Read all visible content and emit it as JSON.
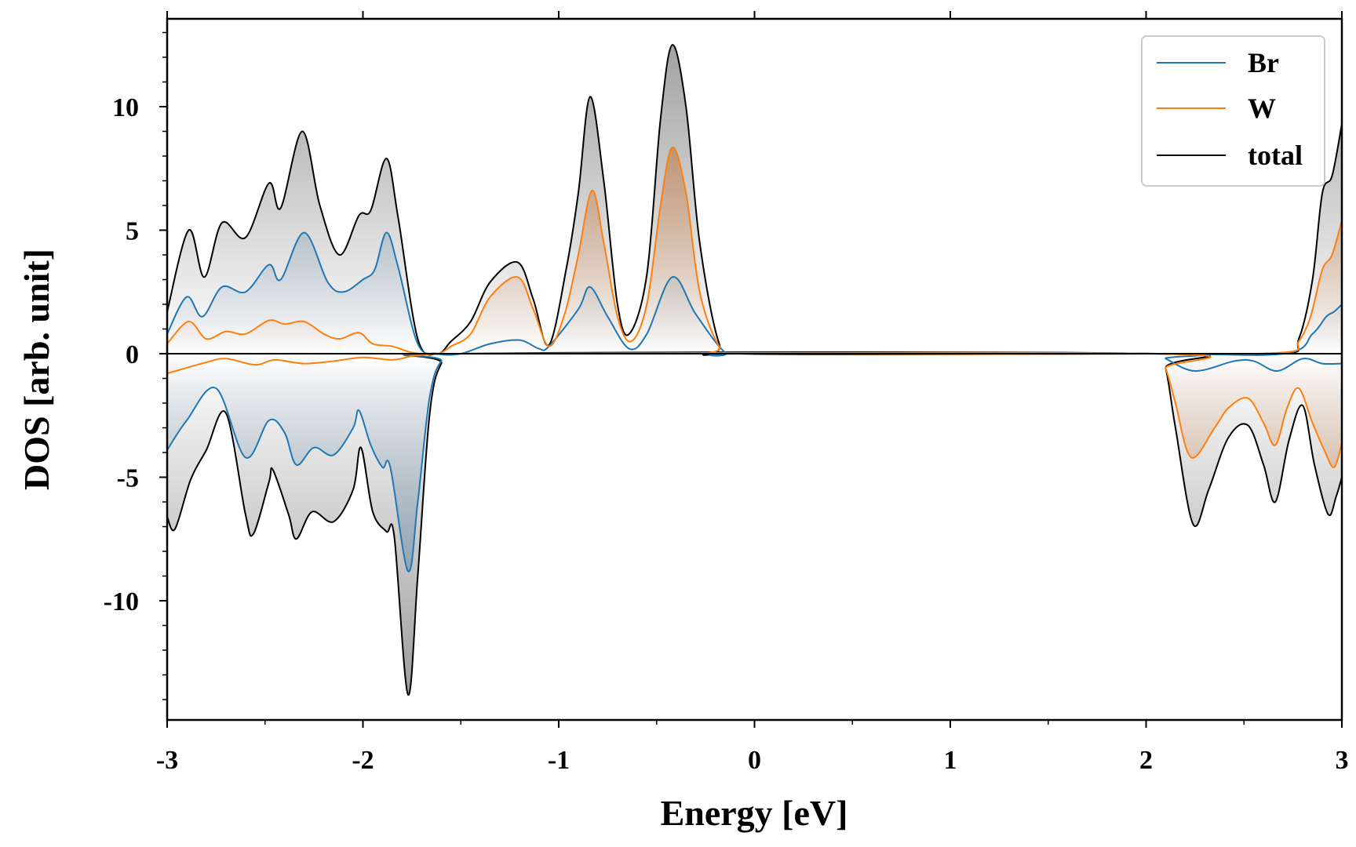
{
  "chart_data": {
    "type": "line",
    "xlabel": "Energy [eV]",
    "ylabel": "DOS [arb. unit]",
    "xlim": [
      -3,
      3
    ],
    "ylim": [
      -14.7,
      13.8
    ],
    "x_ticks": [
      -3,
      -2,
      -1,
      0,
      1,
      2,
      3
    ],
    "x_tick_labels": [
      "-3",
      "-2",
      "-1",
      "0",
      "1",
      "2",
      "3"
    ],
    "y_ticks": [
      -10,
      -5,
      0,
      5,
      10
    ],
    "y_tick_labels": [
      "-10",
      "-5",
      "0",
      "5",
      "10"
    ],
    "grid": false,
    "legend_position": "top-right",
    "spin_channels": [
      "up",
      "down"
    ],
    "series": [
      {
        "name": "Br",
        "color": "#1f77b4",
        "fill_color": "#5a7fa0",
        "up": [
          [
            -3.0,
            0.8
          ],
          [
            -2.9,
            2.3
          ],
          [
            -2.82,
            1.5
          ],
          [
            -2.72,
            2.7
          ],
          [
            -2.6,
            2.5
          ],
          [
            -2.48,
            3.6
          ],
          [
            -2.42,
            3.0
          ],
          [
            -2.3,
            4.9
          ],
          [
            -2.18,
            2.9
          ],
          [
            -2.1,
            2.5
          ],
          [
            -2.0,
            3.0
          ],
          [
            -1.94,
            3.4
          ],
          [
            -1.88,
            4.9
          ],
          [
            -1.82,
            3.5
          ],
          [
            -1.72,
            0.4
          ],
          [
            -1.62,
            0.0
          ],
          [
            -1.5,
            0.0
          ],
          [
            -1.35,
            0.4
          ],
          [
            -1.2,
            0.55
          ],
          [
            -1.1,
            0.2
          ],
          [
            -1.05,
            0.3
          ],
          [
            -0.9,
            1.8
          ],
          [
            -0.84,
            2.7
          ],
          [
            -0.75,
            1.5
          ],
          [
            -0.64,
            0.2
          ],
          [
            -0.55,
            0.8
          ],
          [
            -0.42,
            3.1
          ],
          [
            -0.3,
            1.6
          ],
          [
            -0.15,
            0.05
          ],
          [
            -0.05,
            0.0
          ],
          [
            2.0,
            0.0
          ],
          [
            2.7,
            0.0
          ],
          [
            2.85,
            0.8
          ],
          [
            2.92,
            1.5
          ],
          [
            2.96,
            1.7
          ],
          [
            3.0,
            2.0
          ]
        ],
        "down": [
          [
            -3.0,
            -3.9
          ],
          [
            -2.9,
            -2.7
          ],
          [
            -2.75,
            -1.4
          ],
          [
            -2.6,
            -4.2
          ],
          [
            -2.48,
            -2.7
          ],
          [
            -2.4,
            -3.2
          ],
          [
            -2.34,
            -4.5
          ],
          [
            -2.25,
            -3.8
          ],
          [
            -2.15,
            -4.1
          ],
          [
            -2.05,
            -3.0
          ],
          [
            -2.02,
            -2.3
          ],
          [
            -1.96,
            -3.7
          ],
          [
            -1.9,
            -4.6
          ],
          [
            -1.86,
            -4.6
          ],
          [
            -1.77,
            -8.8
          ],
          [
            -1.72,
            -6.0
          ],
          [
            -1.66,
            -1.8
          ],
          [
            -1.6,
            -0.3
          ],
          [
            -1.5,
            0.0
          ],
          [
            2.05,
            0.0
          ],
          [
            2.1,
            -0.2
          ],
          [
            2.25,
            -0.7
          ],
          [
            2.45,
            -0.3
          ],
          [
            2.55,
            -0.3
          ],
          [
            2.67,
            -0.7
          ],
          [
            2.8,
            -0.2
          ],
          [
            2.9,
            -0.4
          ],
          [
            3.0,
            -0.4
          ]
        ]
      },
      {
        "name": "W",
        "color": "#ff7f0e",
        "fill_color": "#c0621b",
        "up": [
          [
            -3.0,
            0.4
          ],
          [
            -2.89,
            1.3
          ],
          [
            -2.8,
            0.6
          ],
          [
            -2.7,
            0.9
          ],
          [
            -2.6,
            0.8
          ],
          [
            -2.48,
            1.35
          ],
          [
            -2.4,
            1.2
          ],
          [
            -2.3,
            1.3
          ],
          [
            -2.2,
            0.8
          ],
          [
            -2.12,
            0.6
          ],
          [
            -2.02,
            0.85
          ],
          [
            -1.95,
            0.4
          ],
          [
            -1.85,
            0.3
          ],
          [
            -1.75,
            0.05
          ],
          [
            -1.62,
            0.0
          ],
          [
            -1.55,
            0.3
          ],
          [
            -1.45,
            0.8
          ],
          [
            -1.35,
            2.3
          ],
          [
            -1.21,
            3.1
          ],
          [
            -1.13,
            1.8
          ],
          [
            -1.05,
            0.3
          ],
          [
            -0.97,
            1.6
          ],
          [
            -0.9,
            4.0
          ],
          [
            -0.83,
            6.6
          ],
          [
            -0.77,
            4.5
          ],
          [
            -0.7,
            1.5
          ],
          [
            -0.63,
            0.5
          ],
          [
            -0.55,
            2.0
          ],
          [
            -0.48,
            6.0
          ],
          [
            -0.42,
            8.35
          ],
          [
            -0.35,
            6.5
          ],
          [
            -0.28,
            2.5
          ],
          [
            -0.18,
            0.3
          ],
          [
            -0.08,
            0.0
          ],
          [
            2.0,
            0.0
          ],
          [
            2.7,
            0.05
          ],
          [
            2.78,
            0.5
          ],
          [
            2.84,
            1.5
          ],
          [
            2.9,
            3.4
          ],
          [
            2.95,
            4.0
          ],
          [
            3.0,
            5.4
          ]
        ],
        "down": [
          [
            -3.0,
            -0.8
          ],
          [
            -2.8,
            -0.35
          ],
          [
            -2.7,
            -0.2
          ],
          [
            -2.55,
            -0.45
          ],
          [
            -2.45,
            -0.25
          ],
          [
            -2.3,
            -0.4
          ],
          [
            -2.15,
            -0.3
          ],
          [
            -2.0,
            -0.15
          ],
          [
            -1.85,
            -0.25
          ],
          [
            -1.75,
            -0.1
          ],
          [
            -1.65,
            -0.02
          ],
          [
            -1.55,
            0.0
          ],
          [
            2.05,
            0.0
          ],
          [
            2.1,
            -0.6
          ],
          [
            2.15,
            -2.0
          ],
          [
            2.23,
            -4.2
          ],
          [
            2.35,
            -3.0
          ],
          [
            2.42,
            -2.2
          ],
          [
            2.52,
            -1.8
          ],
          [
            2.6,
            -2.8
          ],
          [
            2.66,
            -3.7
          ],
          [
            2.72,
            -2.2
          ],
          [
            2.78,
            -1.4
          ],
          [
            2.85,
            -2.8
          ],
          [
            2.91,
            -3.9
          ],
          [
            2.96,
            -4.6
          ],
          [
            3.0,
            -3.6
          ]
        ]
      },
      {
        "name": "total",
        "color": "#000000",
        "fill_color": "#8c8c8c",
        "up": [
          [
            -3.0,
            1.7
          ],
          [
            -2.89,
            5.0
          ],
          [
            -2.81,
            3.1
          ],
          [
            -2.72,
            5.3
          ],
          [
            -2.6,
            4.7
          ],
          [
            -2.48,
            6.9
          ],
          [
            -2.42,
            5.9
          ],
          [
            -2.31,
            9.0
          ],
          [
            -2.22,
            6.0
          ],
          [
            -2.12,
            4.0
          ],
          [
            -2.02,
            5.6
          ],
          [
            -1.96,
            5.8
          ],
          [
            -1.88,
            7.9
          ],
          [
            -1.82,
            5.5
          ],
          [
            -1.72,
            0.6
          ],
          [
            -1.62,
            0.0
          ],
          [
            -1.55,
            0.5
          ],
          [
            -1.45,
            1.3
          ],
          [
            -1.35,
            2.9
          ],
          [
            -1.21,
            3.7
          ],
          [
            -1.13,
            2.2
          ],
          [
            -1.05,
            0.35
          ],
          [
            -0.96,
            3.5
          ],
          [
            -0.9,
            6.5
          ],
          [
            -0.84,
            10.4
          ],
          [
            -0.77,
            7.0
          ],
          [
            -0.7,
            2.0
          ],
          [
            -0.64,
            0.8
          ],
          [
            -0.55,
            3.2
          ],
          [
            -0.48,
            9.5
          ],
          [
            -0.42,
            12.5
          ],
          [
            -0.35,
            10.0
          ],
          [
            -0.28,
            4.5
          ],
          [
            -0.18,
            0.4
          ],
          [
            -0.08,
            0.0
          ],
          [
            2.0,
            0.0
          ],
          [
            2.7,
            0.0
          ],
          [
            2.78,
            0.6
          ],
          [
            2.85,
            3.0
          ],
          [
            2.9,
            6.5
          ],
          [
            2.95,
            7.2
          ],
          [
            3.0,
            9.3
          ]
        ],
        "down": [
          [
            -3.0,
            -6.6
          ],
          [
            -2.96,
            -7.1
          ],
          [
            -2.88,
            -5.1
          ],
          [
            -2.8,
            -3.9
          ],
          [
            -2.7,
            -2.4
          ],
          [
            -2.6,
            -6.5
          ],
          [
            -2.56,
            -7.3
          ],
          [
            -2.48,
            -5.2
          ],
          [
            -2.46,
            -4.7
          ],
          [
            -2.38,
            -6.5
          ],
          [
            -2.34,
            -7.5
          ],
          [
            -2.26,
            -6.4
          ],
          [
            -2.15,
            -6.8
          ],
          [
            -2.05,
            -5.5
          ],
          [
            -2.01,
            -3.8
          ],
          [
            -1.95,
            -6.4
          ],
          [
            -1.88,
            -7.2
          ],
          [
            -1.84,
            -7.4
          ],
          [
            -1.77,
            -13.8
          ],
          [
            -1.72,
            -9.0
          ],
          [
            -1.66,
            -2.5
          ],
          [
            -1.6,
            -0.4
          ],
          [
            -1.5,
            0.0
          ],
          [
            2.05,
            0.0
          ],
          [
            2.1,
            -0.6
          ],
          [
            2.15,
            -3.0
          ],
          [
            2.24,
            -6.9
          ],
          [
            2.32,
            -5.5
          ],
          [
            2.42,
            -3.4
          ],
          [
            2.52,
            -2.9
          ],
          [
            2.6,
            -4.5
          ],
          [
            2.66,
            -6.0
          ],
          [
            2.73,
            -3.5
          ],
          [
            2.8,
            -2.1
          ],
          [
            2.86,
            -4.5
          ],
          [
            2.93,
            -6.5
          ],
          [
            2.97,
            -5.8
          ],
          [
            3.0,
            -5.0
          ]
        ]
      }
    ]
  }
}
